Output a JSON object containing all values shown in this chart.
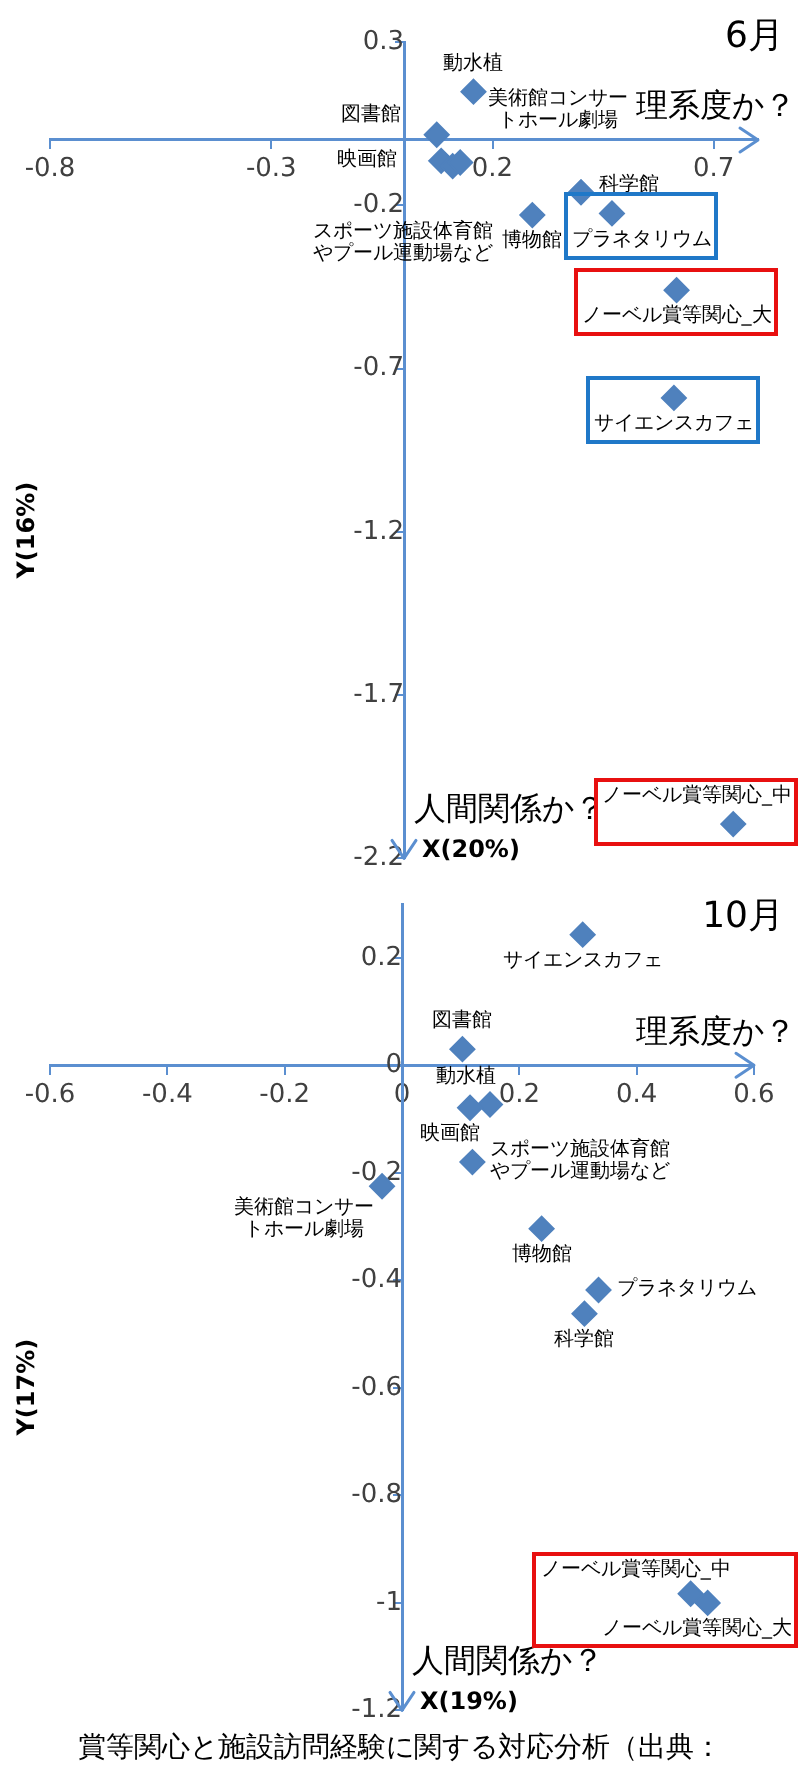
{
  "chart_data": [
    {
      "type": "scatter",
      "title": "6月",
      "xlabel": "理系度か？",
      "ylabel": "Y(16%)",
      "color": "#4f81bd",
      "marker": "diamond",
      "x": [
        0.157,
        0.074,
        0.084,
        0.11,
        0.127,
        0.4,
        0.29,
        0.47,
        0.616,
        0.61,
        0.744
      ],
      "values": [
        0.148,
        0.016,
        -0.064,
        -0.08,
        -0.069,
        -0.16,
        -0.23,
        -0.225,
        -0.46,
        -0.79,
        -2.095
      ],
      "xlim": [
        -0.8,
        0.8
      ],
      "ylim": [
        -2.2,
        0.3
      ],
      "xticks": [
        -0.8,
        -0.3,
        0.2,
        0.7
      ],
      "yticks": [
        0.3,
        -0.2,
        -0.7,
        -1.2,
        -1.7,
        -2.2
      ],
      "annotations": [
        "人間関係か？",
        "X(20%)",
        {
          "text": "動水植",
          "x": 0.157,
          "y": 0.148
        },
        {
          "text": "図書館",
          "x": 0.074,
          "y": 0.016
        },
        {
          "text": "映画館",
          "x": 0.084,
          "y": -0.064
        },
        {
          "text": "スポーツ施設体育館やプール運動場など",
          "x": 0.11,
          "y": -0.08
        },
        {
          "text": "美術館コンサートホール劇場",
          "x": 0.127,
          "y": -0.069
        },
        {
          "text": "科学館",
          "x": 0.4,
          "y": -0.16
        },
        {
          "text": "博物館",
          "x": 0.29,
          "y": -0.23
        },
        {
          "text": "プラネタリウム",
          "x": 0.47,
          "y": -0.225
        },
        {
          "text": "ノーベル賞等関心_大",
          "x": 0.616,
          "y": -0.46
        },
        {
          "text": "サイエンスカフェ",
          "x": 0.61,
          "y": -0.79
        },
        {
          "text": "ノーベル賞等関心_中",
          "x": 0.744,
          "y": -2.095
        }
      ]
    },
    {
      "type": "scatter",
      "title": "10月",
      "xlabel": "理系度か？",
      "ylabel": "Y(17%)",
      "color": "#4f81bd",
      "marker": "diamond",
      "x": [
        0.308,
        0.103,
        0.15,
        0.116,
        0.12,
        -0.034,
        0.238,
        0.335,
        0.311,
        0.492,
        0.521
      ],
      "values": [
        0.243,
        0.03,
        -0.073,
        -0.079,
        -0.18,
        -0.225,
        -0.304,
        -0.418,
        -0.462,
        -0.983,
        -1.0
      ],
      "xlim": [
        -0.6,
        0.6
      ],
      "ylim": [
        -1.2,
        0.3
      ],
      "xticks": [
        -0.6,
        -0.4,
        -0.2,
        0,
        0.2,
        0.4,
        0.6
      ],
      "yticks": [
        0.2,
        0,
        -0.2,
        -0.4,
        -0.6,
        -0.8,
        -1,
        -1.2
      ],
      "annotations": [
        "人間関係か？",
        "X(19%)",
        "賞等関心と施設訪問経験に関する対応分析（出典：",
        {
          "text": "サイエンスカフェ",
          "x": 0.308,
          "y": 0.243
        },
        {
          "text": "図書館",
          "x": 0.103,
          "y": 0.03
        },
        {
          "text": "動水植",
          "x": 0.15,
          "y": -0.073
        },
        {
          "text": "映画館",
          "x": 0.116,
          "y": -0.079
        },
        {
          "text": "スポーツ施設体育館やプール運動場など",
          "x": 0.12,
          "y": -0.18
        },
        {
          "text": "美術館コンサートホール劇場",
          "x": -0.034,
          "y": -0.225
        },
        {
          "text": "博物館",
          "x": 0.238,
          "y": -0.304
        },
        {
          "text": "プラネタリウム",
          "x": 0.335,
          "y": -0.418
        },
        {
          "text": "科学館",
          "x": 0.311,
          "y": -0.462
        },
        {
          "text": "ノーベル賞等関心_中",
          "x": 0.492,
          "y": -0.983
        },
        {
          "text": "ノーベル賞等関心_大",
          "x": 0.521,
          "y": -1.0
        }
      ]
    }
  ]
}
